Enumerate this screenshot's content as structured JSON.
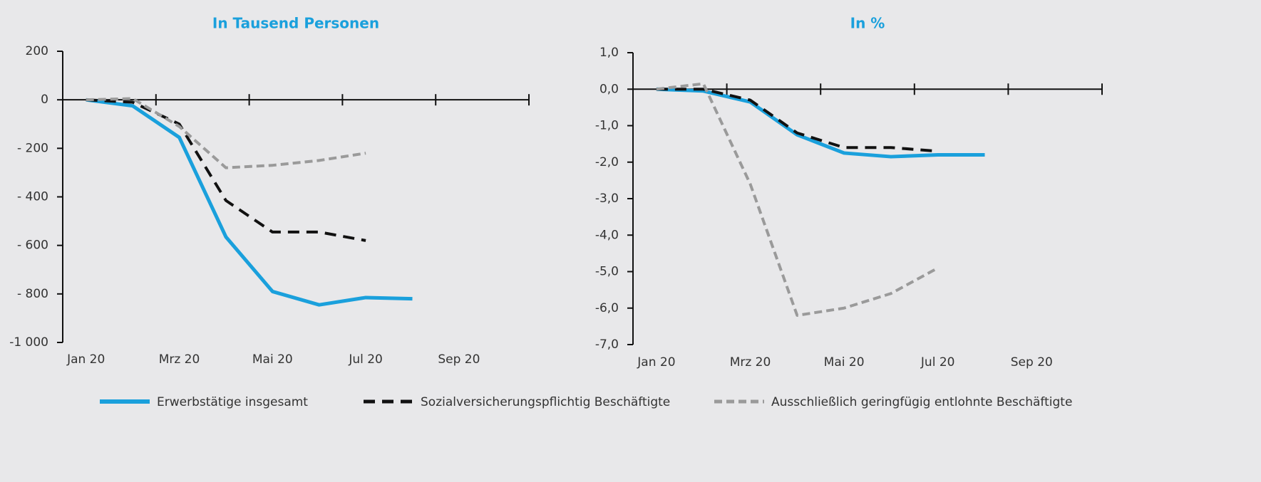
{
  "chart_data": [
    {
      "type": "line",
      "title": "In Tausend Personen",
      "categories": [
        "Jan 20",
        null,
        "Mrz 20",
        null,
        "Mai 20",
        null,
        "Jul 20",
        null,
        "Sep 20",
        null
      ],
      "ylim": [
        -1000,
        200
      ],
      "yticks": [
        {
          "value": 200,
          "label": "200"
        },
        {
          "value": 0,
          "label": "0"
        },
        {
          "value": -200,
          "label": "- 200"
        },
        {
          "value": -400,
          "label": "- 400"
        },
        {
          "value": -600,
          "label": "- 600"
        },
        {
          "value": -800,
          "label": "- 800"
        },
        {
          "value": -1000,
          "label": "-1 000"
        }
      ],
      "series": [
        {
          "name": "Erwerbstätige insgesamt",
          "color": "#1aa0dc",
          "dash": "solid",
          "values": [
            0,
            -25,
            -155,
            -565,
            -790,
            -845,
            -815,
            -820,
            null,
            null
          ]
        },
        {
          "name": "Sozialversicherungspflichtig Beschäftigte",
          "color": "#111111",
          "dash": "long",
          "values": [
            0,
            -10,
            -100,
            -415,
            -545,
            -545,
            -580,
            null,
            null,
            null
          ]
        },
        {
          "name": "Ausschließlich geringfügig entlohnte Beschäftigte",
          "color": "#9a9a9a",
          "dash": "short",
          "values": [
            0,
            5,
            -110,
            -280,
            -270,
            -250,
            -220,
            null,
            null,
            null
          ]
        }
      ]
    },
    {
      "type": "line",
      "title": "In %",
      "categories": [
        "Jan 20",
        null,
        "Mrz 20",
        null,
        "Mai 20",
        null,
        "Jul 20",
        null,
        "Sep 20",
        null
      ],
      "ylim": [
        -7,
        1
      ],
      "yticks": [
        {
          "value": 1,
          "label": "1,0"
        },
        {
          "value": 0,
          "label": "0,0"
        },
        {
          "value": -1,
          "label": "-1,0"
        },
        {
          "value": -2,
          "label": "-2,0"
        },
        {
          "value": -3,
          "label": "-3,0"
        },
        {
          "value": -4,
          "label": "-4,0"
        },
        {
          "value": -5,
          "label": "-5,0"
        },
        {
          "value": -6,
          "label": "-6,0"
        },
        {
          "value": -7,
          "label": "-7,0"
        }
      ],
      "series": [
        {
          "color": "#1aa0dc",
          "dash": "solid",
          "values": [
            0,
            -0.05,
            -0.35,
            -1.25,
            -1.75,
            -1.85,
            -1.8,
            -1.8,
            null,
            null
          ]
        },
        {
          "color": "#111111",
          "dash": "long",
          "values": [
            0,
            0,
            -0.3,
            -1.2,
            -1.6,
            -1.6,
            -1.7,
            null,
            null,
            null
          ]
        },
        {
          "color": "#9a9a9a",
          "dash": "short",
          "values": [
            0,
            0.15,
            -2.6,
            -6.2,
            -6.0,
            -5.6,
            -4.9,
            null,
            null,
            null
          ]
        }
      ]
    }
  ]
}
